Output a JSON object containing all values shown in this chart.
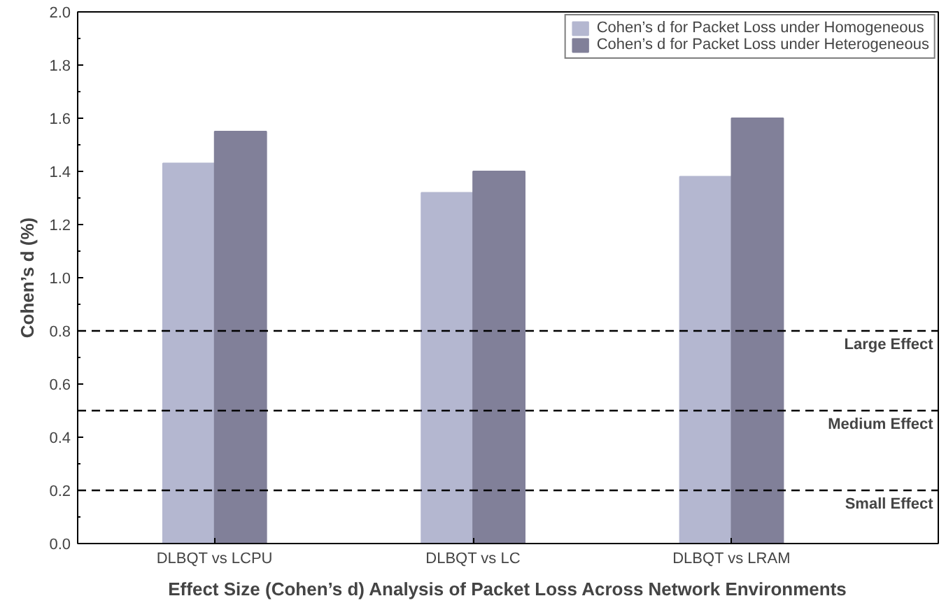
{
  "chart_data": {
    "type": "bar",
    "xlabel": "Effect Size (Cohen’s d) Analysis of Packet Loss Across Network Environments",
    "ylabel": "Cohen’s d (%)",
    "categories": [
      "DLBQT vs LCPU",
      "DLBQT vs LC",
      "DLBQT vs LRAM"
    ],
    "series": [
      {
        "name": "Cohen’s d for Packet Loss under Homogeneous",
        "color": "#b4b7d0",
        "values": [
          1.43,
          1.32,
          1.38
        ]
      },
      {
        "name": "Cohen’s d for Packet Loss under Heterogeneous",
        "color": "#818099",
        "values": [
          1.55,
          1.4,
          1.6
        ]
      }
    ],
    "ylim": [
      0,
      2.0
    ],
    "yticks": [
      {
        "value": 0,
        "label": "0.0"
      },
      {
        "value": 0.2,
        "label": "0.2"
      },
      {
        "value": 0.4,
        "label": "0.4"
      },
      {
        "value": 0.6,
        "label": "0.6"
      },
      {
        "value": 0.8,
        "label": "0.8"
      },
      {
        "value": 1.0,
        "label": "1.0"
      },
      {
        "value": 1.2,
        "label": "1.2"
      },
      {
        "value": 1.4,
        "label": "1.4"
      },
      {
        "value": 1.6,
        "label": "1.6"
      },
      {
        "value": 1.8,
        "label": "1.8"
      },
      {
        "value": 2.0,
        "label": "2.0"
      }
    ],
    "ref_lines": [
      {
        "axis": "y",
        "value": 0.8,
        "label": "Large Effect",
        "color": "#000000",
        "line_style": "dashed"
      },
      {
        "axis": "y",
        "value": 0.5,
        "label": "Medium Effect",
        "color": "#000000",
        "line_style": "dashed"
      },
      {
        "axis": "y",
        "value": 0.2,
        "label": "Small Effect",
        "color": "#000000",
        "line_style": "dashed"
      }
    ],
    "grid": false,
    "legend": "top right"
  }
}
